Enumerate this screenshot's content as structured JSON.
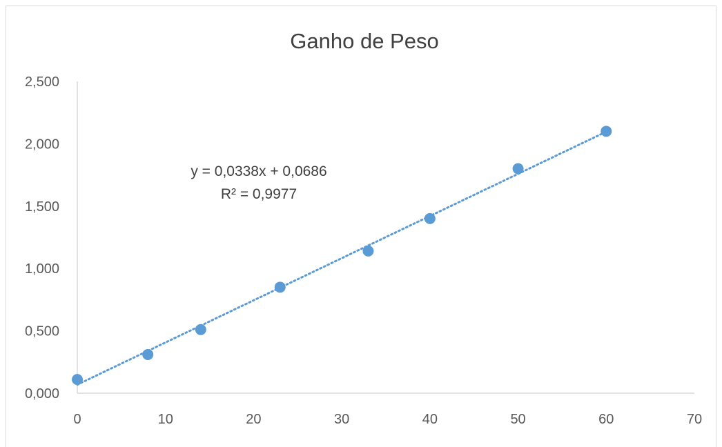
{
  "chart_data": {
    "type": "scatter",
    "title": "Ganho de Peso",
    "xlabel": "",
    "ylabel": "",
    "xlim": [
      0,
      70
    ],
    "ylim": [
      0,
      2.5
    ],
    "x_ticks": [
      "0",
      "10",
      "20",
      "30",
      "40",
      "50",
      "60",
      "70"
    ],
    "y_ticks": [
      "0,000",
      "0,500",
      "1,000",
      "1,500",
      "2,000",
      "2,500"
    ],
    "grid": false,
    "legend": "none",
    "marker_color": "#5B9BD5",
    "series": [
      {
        "points": [
          {
            "x": 0,
            "y": 0.11
          },
          {
            "x": 8,
            "y": 0.31
          },
          {
            "x": 14,
            "y": 0.51
          },
          {
            "x": 23,
            "y": 0.85
          },
          {
            "x": 33,
            "y": 1.14
          },
          {
            "x": 40,
            "y": 1.4
          },
          {
            "x": 50,
            "y": 1.8
          },
          {
            "x": 60,
            "y": 2.1
          }
        ]
      }
    ],
    "trendline": {
      "type": "linear",
      "slope": 0.0338,
      "intercept": 0.0686,
      "x_range": [
        0,
        60
      ],
      "style": "dotted",
      "equation_label": "y = 0,0338x + 0,0686",
      "r2_label": "R² = 0,9977"
    }
  }
}
